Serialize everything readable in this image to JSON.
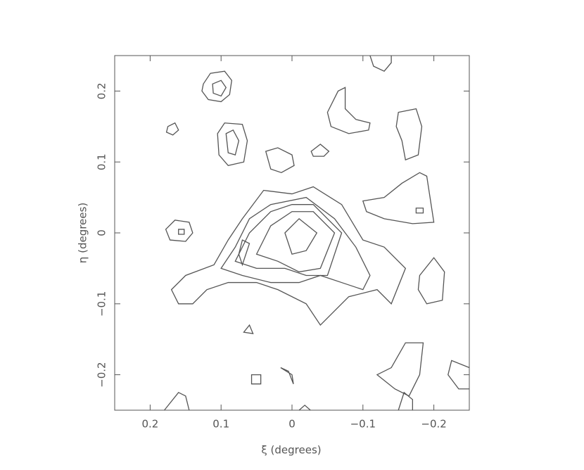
{
  "chart_data": {
    "type": "contour",
    "xlabel": "ξ (degrees)",
    "ylabel": "η (degrees)",
    "xlim": [
      0.25,
      -0.25
    ],
    "ylim": [
      -0.25,
      0.25
    ],
    "xticks": [
      0.2,
      0.1,
      0,
      {
        "value": -0.1,
        "label": "−0.1"
      },
      {
        "value": -0.2,
        "label": "−0.2"
      }
    ],
    "yticks": [
      {
        "value": -0.2,
        "label": "−0.2"
      },
      {
        "value": -0.1,
        "label": "−0.1"
      },
      0,
      0.1,
      0.2
    ],
    "color": "#555555",
    "contours": [
      {
        "closed": true,
        "x": [
          0.125,
          0.115,
          0.095,
          0.085,
          0.088,
          0.1,
          0.118,
          0.127
        ],
        "y": [
          0.21,
          0.225,
          0.228,
          0.215,
          0.195,
          0.185,
          0.188,
          0.2
        ]
      },
      {
        "closed": true,
        "x": [
          0.112,
          0.1,
          0.093,
          0.1,
          0.111
        ],
        "y": [
          0.21,
          0.215,
          0.205,
          0.193,
          0.197
        ]
      },
      {
        "closed": true,
        "x": [
          0.105,
          0.095,
          0.07,
          0.063,
          0.068,
          0.09,
          0.103
        ],
        "y": [
          0.14,
          0.155,
          0.153,
          0.13,
          0.1,
          0.095,
          0.11
        ]
      },
      {
        "closed": true,
        "x": [
          0.093,
          0.083,
          0.075,
          0.08,
          0.09
        ],
        "y": [
          0.14,
          0.145,
          0.13,
          0.11,
          0.113
        ]
      },
      {
        "closed": true,
        "x": [
          0.175,
          0.165,
          0.16,
          0.168,
          0.177
        ],
        "y": [
          0.15,
          0.155,
          0.145,
          0.138,
          0.142
        ]
      },
      {
        "closed": true,
        "x": [
          -0.05,
          -0.065,
          -0.075,
          -0.075,
          -0.09,
          -0.11,
          -0.108,
          -0.08,
          -0.055
        ],
        "y": [
          0.17,
          0.2,
          0.205,
          0.175,
          0.16,
          0.155,
          0.145,
          0.14,
          0.15
        ]
      },
      {
        "closed": true,
        "x": [
          -0.15,
          -0.175,
          -0.183,
          -0.178,
          -0.16,
          -0.155,
          -0.147
        ],
        "y": [
          0.17,
          0.175,
          0.15,
          0.11,
          0.103,
          0.13,
          0.15
        ]
      },
      {
        "closed": true,
        "x": [
          0.037,
          0.02,
          0.0,
          -0.003,
          0.015,
          0.03
        ],
        "y": [
          0.115,
          0.12,
          0.11,
          0.095,
          0.085,
          0.09
        ]
      },
      {
        "closed": true,
        "x": [
          -0.027,
          -0.04,
          -0.052,
          -0.045,
          -0.03
        ],
        "y": [
          0.115,
          0.125,
          0.115,
          0.108,
          0.108
        ]
      },
      {
        "closed": false,
        "x": [
          -0.11,
          -0.115,
          -0.13,
          -0.14,
          -0.14
        ],
        "y": [
          0.25,
          0.235,
          0.228,
          0.24,
          0.25
        ]
      },
      {
        "closed": true,
        "x": [
          -0.1,
          -0.13,
          -0.155,
          -0.18,
          -0.19,
          -0.2,
          -0.17,
          -0.13,
          -0.105
        ],
        "y": [
          0.045,
          0.05,
          0.07,
          0.085,
          0.08,
          0.015,
          0.013,
          0.02,
          0.03
        ]
      },
      {
        "closed": true,
        "x": [
          -0.175,
          -0.185,
          -0.185,
          -0.175
        ],
        "y": [
          0.035,
          0.035,
          0.028,
          0.028
        ]
      },
      {
        "closed": true,
        "x": [
          0.178,
          0.165,
          0.145,
          0.14,
          0.15,
          0.172
        ],
        "y": [
          0.005,
          0.018,
          0.015,
          0.0,
          -0.012,
          -0.01
        ]
      },
      {
        "closed": true,
        "x": [
          0.16,
          0.152,
          0.152,
          0.16
        ],
        "y": [
          0.005,
          0.005,
          -0.002,
          -0.002
        ]
      },
      {
        "closed": true,
        "x": [
          0.17,
          0.15,
          0.11,
          0.09,
          0.07,
          0.04,
          0.0,
          -0.03,
          -0.07,
          -0.1,
          -0.13,
          -0.16,
          -0.14,
          -0.12,
          -0.08,
          -0.05,
          -0.04,
          -0.02,
          0.02,
          0.05,
          0.09,
          0.12,
          0.14,
          0.16
        ],
        "y": [
          -0.08,
          -0.06,
          -0.045,
          -0.01,
          0.02,
          0.06,
          0.055,
          0.065,
          0.04,
          -0.01,
          -0.02,
          -0.05,
          -0.1,
          -0.08,
          -0.09,
          -0.12,
          -0.13,
          -0.1,
          -0.08,
          -0.07,
          -0.07,
          -0.08,
          -0.1,
          -0.1
        ]
      },
      {
        "closed": true,
        "x": [
          0.1,
          0.08,
          0.06,
          0.03,
          -0.02,
          -0.06,
          -0.09,
          -0.11,
          -0.1,
          -0.07,
          -0.04,
          -0.01,
          0.03,
          0.07
        ],
        "y": [
          -0.05,
          -0.02,
          0.02,
          0.04,
          0.05,
          0.02,
          -0.02,
          -0.06,
          -0.08,
          -0.07,
          -0.06,
          -0.07,
          -0.07,
          -0.06
        ]
      },
      {
        "closed": true,
        "x": [
          0.08,
          0.06,
          0.03,
          0.0,
          -0.03,
          -0.07,
          -0.05,
          -0.02,
          0.01,
          0.05
        ],
        "y": [
          -0.04,
          0.0,
          0.03,
          0.04,
          0.04,
          0.0,
          -0.06,
          -0.06,
          -0.05,
          -0.05
        ]
      },
      {
        "closed": true,
        "x": [
          0.05,
          0.03,
          0.0,
          -0.03,
          -0.06,
          -0.04,
          -0.01,
          0.02
        ],
        "y": [
          -0.03,
          0.01,
          0.03,
          0.03,
          0.0,
          -0.05,
          -0.055,
          -0.04
        ]
      },
      {
        "closed": true,
        "x": [
          0.01,
          -0.01,
          -0.035,
          -0.02,
          0.0
        ],
        "y": [
          0.0,
          0.02,
          0.0,
          -0.025,
          -0.03
        ]
      },
      {
        "closed": true,
        "x": [
          0.07,
          0.06,
          0.07,
          0.075
        ],
        "y": [
          -0.01,
          -0.015,
          -0.045,
          -0.03
        ]
      },
      {
        "closed": true,
        "x": [
          -0.14,
          -0.16,
          -0.185,
          -0.18,
          -0.165,
          -0.145,
          -0.12
        ],
        "y": [
          -0.19,
          -0.155,
          -0.155,
          -0.2,
          -0.23,
          -0.22,
          -0.2
        ]
      },
      {
        "closed": true,
        "x": [
          -0.18,
          -0.2,
          -0.215,
          -0.212,
          -0.19,
          -0.178
        ],
        "y": [
          -0.06,
          -0.035,
          -0.055,
          -0.095,
          -0.1,
          -0.08
        ]
      },
      {
        "closed": false,
        "x": [
          -0.25,
          -0.225,
          -0.22,
          -0.235,
          -0.25
        ],
        "y": [
          -0.19,
          -0.18,
          -0.2,
          -0.22,
          -0.22
        ]
      },
      {
        "closed": true,
        "x": [
          0.068,
          0.06,
          0.055
        ],
        "y": [
          -0.14,
          -0.13,
          -0.142
        ]
      },
      {
        "closed": true,
        "x": [
          0.057,
          0.044,
          0.044,
          0.057
        ],
        "y": [
          -0.2,
          -0.2,
          -0.213,
          -0.213
        ]
      },
      {
        "closed": true,
        "x": [
          0.016,
          0.005,
          -0.002,
          0.0
        ],
        "y": [
          -0.19,
          -0.195,
          -0.213,
          -0.2
        ]
      },
      {
        "closed": false,
        "x": [
          0.18,
          0.16,
          0.15,
          0.145
        ],
        "y": [
          -0.25,
          -0.225,
          -0.23,
          -0.25
        ]
      },
      {
        "closed": false,
        "x": [
          -0.01,
          -0.018,
          -0.026
        ],
        "y": [
          -0.25,
          -0.243,
          -0.25
        ]
      },
      {
        "closed": false,
        "x": [
          -0.15,
          -0.158,
          -0.17,
          -0.17
        ],
        "y": [
          -0.25,
          -0.225,
          -0.235,
          -0.25
        ]
      }
    ]
  }
}
